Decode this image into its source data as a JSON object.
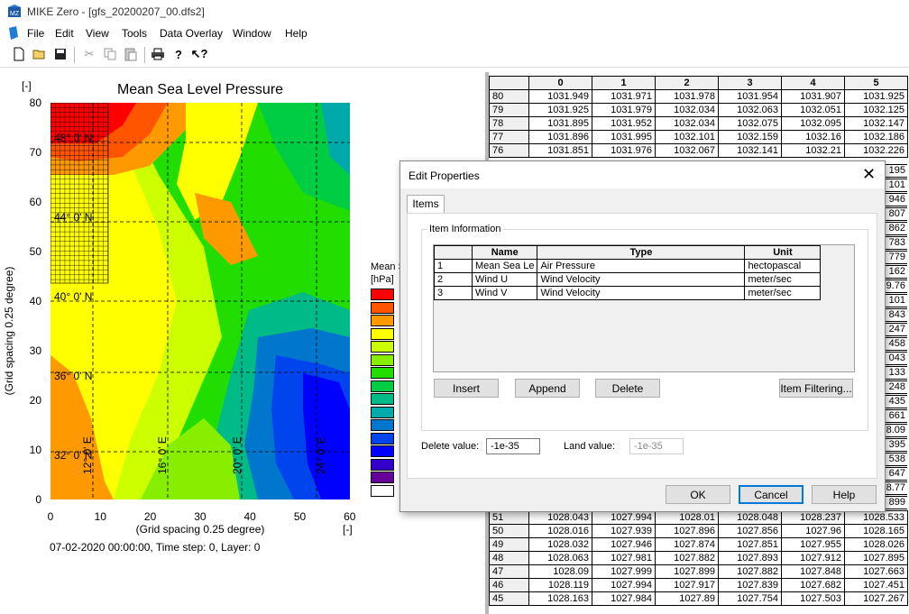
{
  "window": {
    "title": "MIKE Zero - [gfs_20200207_00.dfs2]"
  },
  "menu": [
    "File",
    "Edit",
    "View",
    "Tools",
    "Data Overlay",
    "Window",
    "Help"
  ],
  "toolbar": {
    "icons": [
      "new-file-icon",
      "open-folder-icon",
      "save-icon",
      "cut-icon",
      "copy-icon",
      "paste-icon",
      "print-icon",
      "help-icon",
      "context-help-icon"
    ]
  },
  "plot": {
    "title": "Mean Sea Level Pressure",
    "corner_unit": "[-]",
    "ylabel": "(Grid spacing 0.25 degree)",
    "xlabel": "(Grid spacing 0.25 degree)",
    "x_unit": "[-]",
    "x_ticks": [
      "0",
      "10",
      "20",
      "30",
      "40",
      "50",
      "60"
    ],
    "y_ticks": [
      "80",
      "70",
      "60",
      "50",
      "40",
      "30",
      "20",
      "10",
      "0"
    ],
    "lat_labels": [
      "48° 0' N",
      "44° 0' N",
      "40° 0' N",
      "36° 0' N",
      "32° 0' N"
    ],
    "lon_labels": [
      "12° 0' E",
      "16° 0' E",
      "20° 0' E",
      "24° 0' E"
    ],
    "status": "07-02-2020 00:00:00, Time step: 0, Layer: 0",
    "legend_title": "Mean S",
    "legend_unit": "[hPa]",
    "legend_colors": [
      "#ff0000",
      "#ff5500",
      "#ff9900",
      "#ffff00",
      "#ccff00",
      "#88ee00",
      "#22dd00",
      "#00cc44",
      "#00bb88",
      "#00aaaa",
      "#0077cc",
      "#0044ee",
      "#0000ff",
      "#3300cc",
      "#660099",
      "#ffffff"
    ]
  },
  "grid": {
    "columns": [
      "0",
      "1",
      "2",
      "3",
      "4",
      "5"
    ],
    "rows_top": [
      {
        "row": "80",
        "vals": [
          "1031.949",
          "1031.971",
          "1031.978",
          "1031.954",
          "1031.907",
          "1031.925"
        ]
      },
      {
        "row": "79",
        "vals": [
          "1031.925",
          "1031.979",
          "1032.034",
          "1032.063",
          "1032.051",
          "1032.125"
        ]
      },
      {
        "row": "78",
        "vals": [
          "1031.895",
          "1031.952",
          "1032.034",
          "1032.075",
          "1032.095",
          "1032.147"
        ]
      },
      {
        "row": "77",
        "vals": [
          "1031.896",
          "1031.995",
          "1032.101",
          "1032.159",
          "1032.16",
          "1032.186"
        ]
      },
      {
        "row": "76",
        "vals": [
          "1031.851",
          "1031.976",
          "1032.067",
          "1032.141",
          "1032.21",
          "1032.226"
        ]
      }
    ],
    "right_edge_values": [
      "195",
      "101",
      "946",
      "807",
      "862",
      "783",
      "779",
      "162",
      "9.76",
      "101",
      "843",
      "247",
      "458",
      "043",
      "133",
      "248",
      "435",
      "661",
      "8.09",
      "395",
      "538",
      "647",
      "8.77",
      "899"
    ],
    "rows_bottom": [
      {
        "row": "51",
        "vals": [
          "1028.043",
          "1027.994",
          "1028.01",
          "1028.048",
          "1028.237",
          "1028.533"
        ]
      },
      {
        "row": "50",
        "vals": [
          "1028.016",
          "1027.939",
          "1027.896",
          "1027.856",
          "1027.96",
          "1028.165"
        ]
      },
      {
        "row": "49",
        "vals": [
          "1028.032",
          "1027.946",
          "1027.874",
          "1027.851",
          "1027.955",
          "1028.026"
        ]
      },
      {
        "row": "48",
        "vals": [
          "1028.063",
          "1027.981",
          "1027.882",
          "1027.893",
          "1027.912",
          "1027.895"
        ]
      },
      {
        "row": "47",
        "vals": [
          "1028.09",
          "1027.999",
          "1027.899",
          "1027.882",
          "1027.848",
          "1027.663"
        ]
      },
      {
        "row": "46",
        "vals": [
          "1028.119",
          "1027.994",
          "1027.917",
          "1027.839",
          "1027.682",
          "1027.451"
        ]
      },
      {
        "row": "45",
        "vals": [
          "1028.163",
          "1027.984",
          "1027.89",
          "1027.754",
          "1027.503",
          "1027.267"
        ]
      }
    ]
  },
  "dialog": {
    "title": "Edit Properties",
    "tab": "Items",
    "group": "Item Information",
    "headers": [
      "Name",
      "Type",
      "Unit"
    ],
    "items": [
      {
        "n": "1",
        "name": "Mean Sea Le",
        "type": "Air Pressure",
        "unit": "hectopascal"
      },
      {
        "n": "2",
        "name": "Wind U",
        "type": "Wind Velocity",
        "unit": "meter/sec"
      },
      {
        "n": "3",
        "name": "Wind V",
        "type": "Wind Velocity",
        "unit": "meter/sec"
      }
    ],
    "insert": "Insert",
    "append": "Append",
    "delete": "Delete",
    "filter": "Item Filtering...",
    "delete_value_label": "Delete value:",
    "delete_value": "-1e-35",
    "land_value_label": "Land value:",
    "land_value": "-1e-35",
    "ok": "OK",
    "cancel": "Cancel",
    "help": "Help"
  }
}
